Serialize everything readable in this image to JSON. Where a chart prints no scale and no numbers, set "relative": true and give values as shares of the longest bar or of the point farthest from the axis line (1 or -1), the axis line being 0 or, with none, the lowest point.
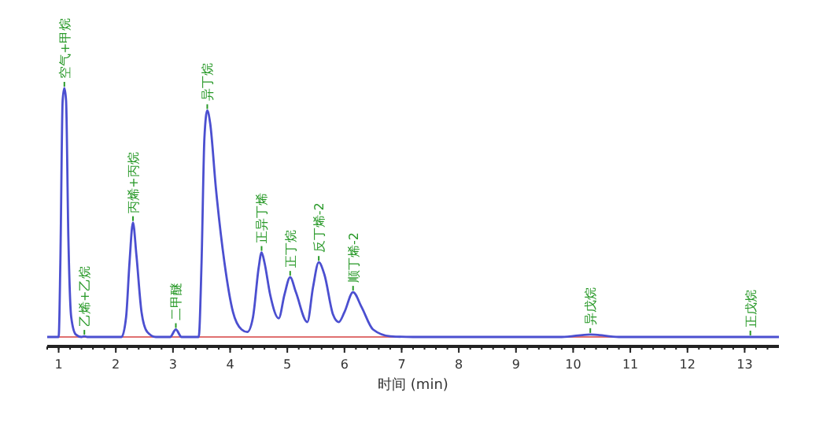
{
  "chart_data": {
    "type": "line",
    "relative": true,
    "xlabel": "时间 (min)",
    "xlim": [
      0.8,
      13.6
    ],
    "xticks": [
      1,
      2,
      3,
      4,
      5,
      6,
      7,
      8,
      9,
      10,
      11,
      12,
      13
    ],
    "tick_labels": "x",
    "grid": false,
    "marker": "none",
    "line_style": "solid",
    "x": [
      0.8,
      1.0,
      1.03,
      1.07,
      1.1,
      1.13,
      1.17,
      1.22,
      1.3,
      1.4,
      1.45,
      1.5,
      2.1,
      2.18,
      2.24,
      2.3,
      2.36,
      2.45,
      2.55,
      2.7,
      2.95,
      3.05,
      3.15,
      3.45,
      3.5,
      3.55,
      3.6,
      3.65,
      3.75,
      3.9,
      4.05,
      4.2,
      4.3,
      4.4,
      4.5,
      4.55,
      4.6,
      4.7,
      4.85,
      4.95,
      5.05,
      5.15,
      5.35,
      5.45,
      5.55,
      5.65,
      5.8,
      5.9,
      6.0,
      6.15,
      6.3,
      6.5,
      6.8,
      7.2,
      9.8,
      10.3,
      10.8,
      13.6
    ],
    "series": [
      {
        "color": "#4b4fd0",
        "values": [
          0,
          0,
          0.3,
          0.95,
          1,
          0.95,
          0.4,
          0.08,
          0.01,
          0,
          0.003,
          0,
          0,
          0.08,
          0.3,
          0.46,
          0.33,
          0.1,
          0.02,
          0,
          0,
          0.03,
          0,
          0,
          0.3,
          0.8,
          0.91,
          0.86,
          0.6,
          0.3,
          0.1,
          0.03,
          0.02,
          0.08,
          0.28,
          0.34,
          0.3,
          0.17,
          0.075,
          0.17,
          0.24,
          0.18,
          0.06,
          0.2,
          0.3,
          0.25,
          0.09,
          0.06,
          0.1,
          0.18,
          0.12,
          0.03,
          0.003,
          0,
          0,
          0.01,
          0,
          0
        ]
      }
    ],
    "ref_lines": [
      {
        "axis": "y",
        "value": 0,
        "color": "#e07070"
      }
    ],
    "annotations": [
      {
        "text": "空气+甲烷",
        "x": 1.1,
        "y": 1
      },
      {
        "text": "乙烯+乙烷",
        "x": 1.45,
        "y": 0.003
      },
      {
        "text": "丙烯+丙烷",
        "x": 2.3,
        "y": 0.46
      },
      {
        "text": "二甲醚",
        "x": 3.05,
        "y": 0.03
      },
      {
        "text": "异丁烷",
        "x": 3.6,
        "y": 0.91
      },
      {
        "text": "正异丁烯",
        "x": 4.55,
        "y": 0.34
      },
      {
        "text": "正丁烷",
        "x": 5.05,
        "y": 0.24
      },
      {
        "text": "反丁烯-2",
        "x": 5.55,
        "y": 0.3
      },
      {
        "text": "顺丁烯-2",
        "x": 6.15,
        "y": 0.18
      },
      {
        "text": "异戊烷",
        "x": 10.3,
        "y": 0.01
      },
      {
        "text": "正戊烷",
        "x": 13.1,
        "y": 0
      }
    ]
  }
}
